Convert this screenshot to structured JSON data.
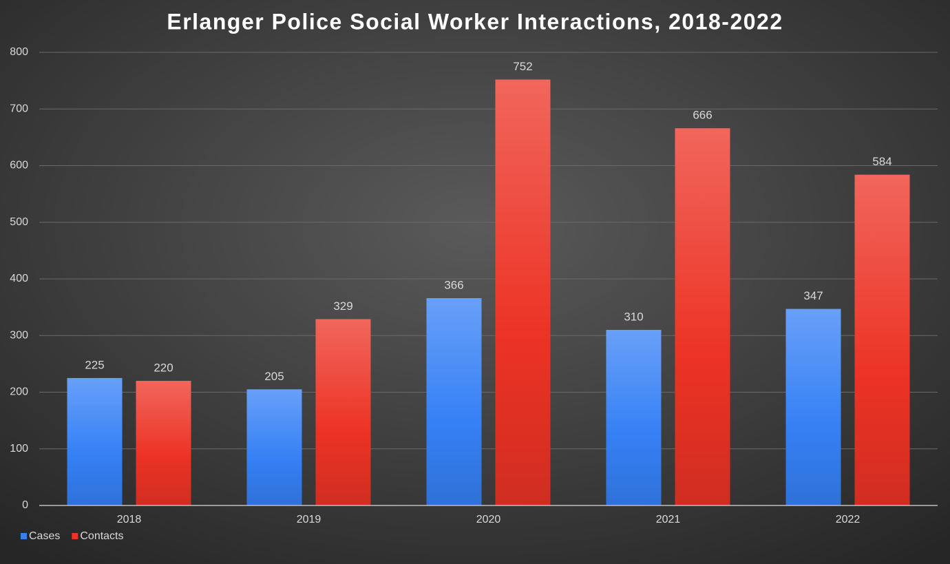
{
  "chart_data": {
    "type": "bar",
    "title": "Erlanger Police Social Worker Interactions, 2018-2022",
    "categories": [
      "2018",
      "2019",
      "2020",
      "2021",
      "2022"
    ],
    "series": [
      {
        "name": "Cases",
        "color": "#3580f5",
        "values": [
          225,
          205,
          366,
          310,
          347
        ]
      },
      {
        "name": "Contacts",
        "color": "#ec3325",
        "values": [
          220,
          329,
          752,
          666,
          584
        ]
      }
    ],
    "ylim": [
      0,
      800
    ],
    "yticks": [
      0,
      100,
      200,
      300,
      400,
      500,
      600,
      700,
      800
    ],
    "grid": true,
    "legend": "bottom-left"
  }
}
